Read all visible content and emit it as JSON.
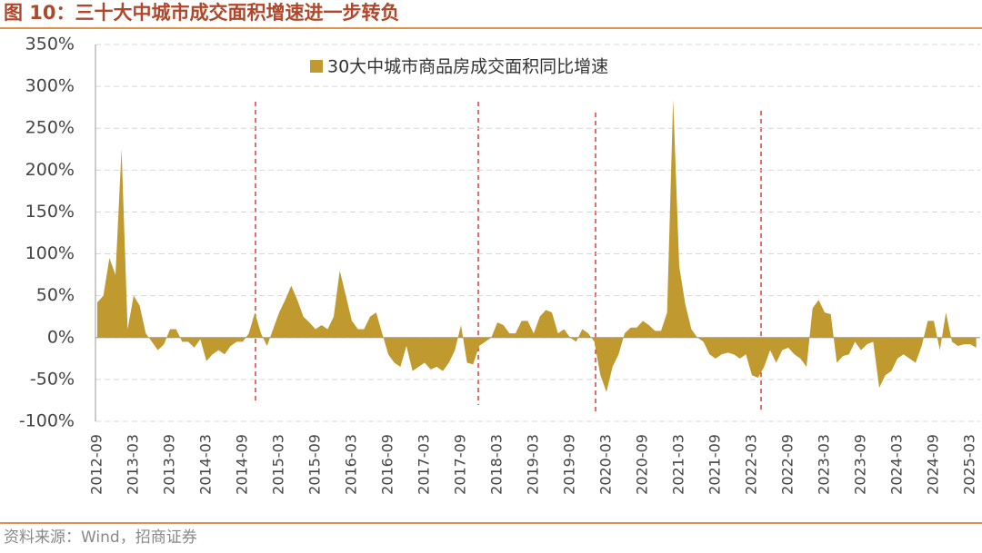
{
  "title": "图 10：三十大中城市成交面积增速进一步转负",
  "source": "资料来源：Wind，招商证券",
  "chart_data": {
    "type": "area",
    "categories": [
      "2012-09",
      null,
      null,
      null,
      null,
      null,
      "2013-03",
      null,
      null,
      null,
      null,
      null,
      "2013-09",
      null,
      null,
      null,
      null,
      null,
      "2014-03",
      null,
      null,
      null,
      null,
      null,
      "2014-09",
      null,
      null,
      null,
      null,
      null,
      "2015-03",
      null,
      null,
      null,
      null,
      null,
      "2015-09",
      null,
      null,
      null,
      null,
      null,
      "2016-03",
      null,
      null,
      null,
      null,
      null,
      "2016-09",
      null,
      null,
      null,
      null,
      null,
      "2017-03",
      null,
      null,
      null,
      null,
      null,
      "2017-09",
      null,
      null,
      null,
      null,
      null,
      "2018-03",
      null,
      null,
      null,
      null,
      null,
      "2019-03",
      null,
      null,
      null,
      null,
      null,
      "2019-09",
      null,
      null,
      null,
      null,
      null,
      "2020-03",
      null,
      null,
      null,
      null,
      null,
      "2020-09",
      null,
      null,
      null,
      null,
      null,
      "2021-03",
      null,
      null,
      null,
      null,
      null,
      "2021-09",
      null,
      null,
      null,
      null,
      null,
      "2022-03",
      null,
      null,
      null,
      null,
      null,
      "2022-09",
      null,
      null,
      null,
      null,
      null,
      "2023-03",
      null,
      null,
      null,
      null,
      null,
      "2023-09",
      null,
      null,
      null,
      null,
      null,
      "2024-03",
      null,
      null,
      null,
      null,
      null,
      "2024-09",
      null,
      null,
      null,
      null,
      null,
      "2025-03",
      null
    ],
    "series": [
      {
        "name": "30大中城市商品房成交面积同比增速",
        "color": "#c09a2e",
        "values": [
          42,
          50,
          95,
          75,
          225,
          10,
          50,
          38,
          5,
          -5,
          -15,
          -8,
          10,
          10,
          -5,
          -5,
          -12,
          -2,
          -28,
          -20,
          -15,
          -20,
          -10,
          -5,
          -5,
          5,
          30,
          5,
          -10,
          10,
          30,
          45,
          62,
          45,
          25,
          18,
          10,
          15,
          10,
          25,
          80,
          50,
          20,
          10,
          10,
          25,
          30,
          5,
          -20,
          -30,
          -35,
          -10,
          -40,
          -35,
          -30,
          -38,
          -35,
          -40,
          -30,
          -15,
          15,
          -30,
          -32,
          -10,
          -5,
          0,
          18,
          15,
          5,
          5,
          20,
          20,
          5,
          25,
          33,
          30,
          5,
          10,
          0,
          -5,
          10,
          5,
          -5,
          -45,
          -65,
          -35,
          -20,
          5,
          12,
          12,
          20,
          15,
          8,
          8,
          30,
          285,
          85,
          40,
          10,
          0,
          -5,
          -20,
          -25,
          -20,
          -18,
          -20,
          -25,
          -20,
          -45,
          -48,
          -35,
          -15,
          -30,
          -15,
          -12,
          -20,
          -25,
          -35,
          35,
          45,
          30,
          28,
          -30,
          -22,
          -20,
          -5,
          -15,
          -8,
          -5,
          -60,
          -45,
          -40,
          -25,
          -20,
          -25,
          -30,
          -10,
          20,
          20,
          -15,
          30,
          -5,
          -10,
          -8,
          -8,
          -12
        ]
      }
    ],
    "ylim": [
      -100,
      350
    ],
    "yticks": [
      {
        "value": -100,
        "label": "-100%"
      },
      {
        "value": -50,
        "label": "-50%"
      },
      {
        "value": 0,
        "label": "0%"
      },
      {
        "value": 50,
        "label": "50%"
      },
      {
        "value": 100,
        "label": "100%"
      },
      {
        "value": 150,
        "label": "150%"
      },
      {
        "value": 200,
        "label": "200%"
      },
      {
        "value": 250,
        "label": "250%"
      },
      {
        "value": 300,
        "label": "300%"
      },
      {
        "value": 350,
        "label": "350%"
      }
    ],
    "grid": true
  }
}
